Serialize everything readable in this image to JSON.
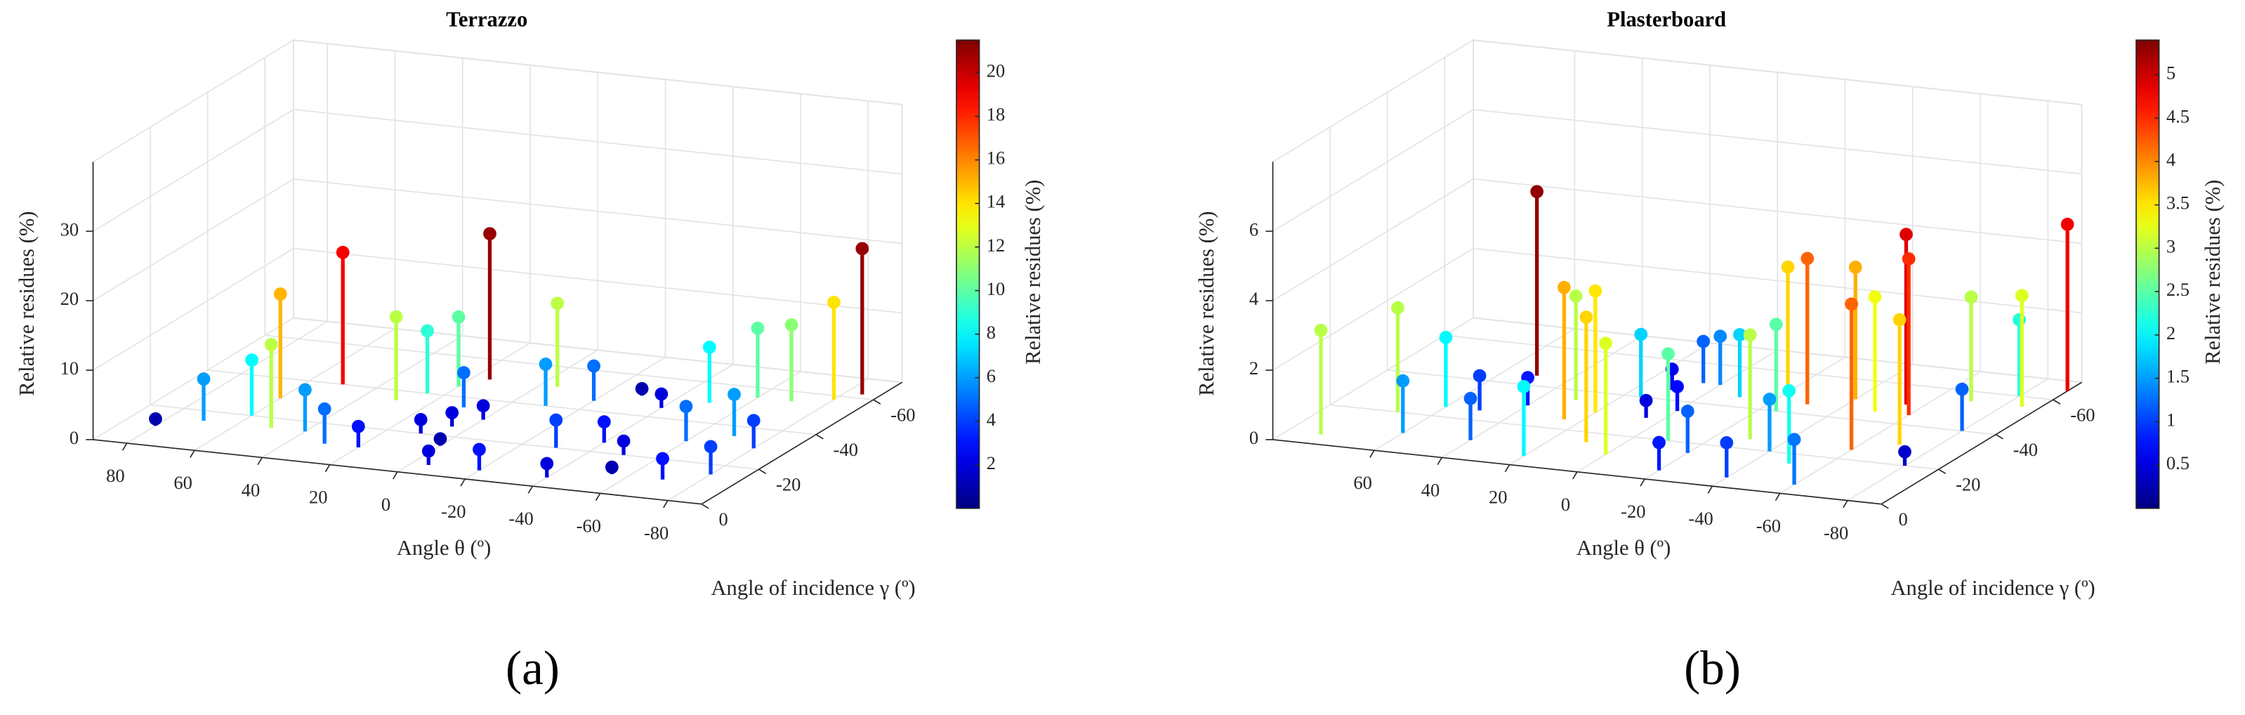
{
  "chart_data": [
    {
      "type": "stem3d",
      "title": "Terrazzo",
      "panel_label": "(a)",
      "xlabel": "Angle θ (º)",
      "ylabel": "Angle of incidence γ (º)",
      "zlabel": "Relative residues (%)",
      "colorbar_label": "Relative residues (%)",
      "colormap": "jet",
      "grid": true,
      "xlim": [
        90,
        -90
      ],
      "xticks": [
        80,
        60,
        40,
        20,
        0,
        -20,
        -40,
        -60,
        -80
      ],
      "ylim": [
        0,
        -70
      ],
      "yticks": [
        0,
        -20,
        -40,
        -60
      ],
      "zlim": [
        0,
        40
      ],
      "zticks": [
        0,
        10,
        20,
        30
      ],
      "clim": [
        0,
        21.5
      ],
      "cticks": [
        2,
        4,
        6,
        8,
        10,
        12,
        14,
        16,
        18,
        20
      ],
      "x": [
        50,
        60,
        15,
        -5,
        20,
        25,
        30,
        10,
        0,
        -10,
        -20,
        -30,
        -40,
        -50,
        -60,
        -70,
        -80,
        -85,
        60,
        70,
        80,
        50,
        40,
        30,
        20,
        10,
        0,
        -5,
        -20,
        -30,
        -40,
        -50,
        -60,
        -70,
        -80,
        -40,
        -55,
        -70,
        -80,
        5
      ],
      "y": [
        -40,
        -30,
        -50,
        -50,
        -45,
        -40,
        -35,
        -35,
        -30,
        -40,
        -45,
        -50,
        -45,
        -50,
        -55,
        -55,
        -58,
        -62,
        -20,
        -15,
        -10,
        -15,
        -15,
        -10,
        -10,
        -20,
        -15,
        -5,
        -5,
        -20,
        -25,
        -20,
        -30,
        -35,
        -30,
        -5,
        -10,
        -10,
        -15,
        -25
      ],
      "values": [
        19,
        15,
        21,
        12,
        10,
        9,
        12,
        5,
        2,
        6,
        5,
        1,
        2,
        8,
        10,
        11,
        14,
        21,
        8,
        6,
        1,
        12,
        6,
        5,
        3,
        2,
        1,
        2,
        3,
        4,
        3,
        2,
        5,
        6,
        4,
        2,
        1,
        3,
        4,
        2
      ]
    },
    {
      "type": "stem3d",
      "title": "Plasterboard",
      "panel_label": "(b)",
      "xlabel": "Angle θ (º)",
      "ylabel": "Angle of incidence γ (º)",
      "zlabel": "Relative residues (%)",
      "colorbar_label": "Relative residues (%)",
      "colormap": "jet",
      "grid": true,
      "xlim": [
        90,
        -90
      ],
      "xticks": [
        60,
        40,
        20,
        0,
        -20,
        -40,
        -60,
        -80
      ],
      "ylim": [
        0,
        -70
      ],
      "yticks": [
        0,
        -20,
        -40,
        -60
      ],
      "zlim": [
        0,
        8
      ],
      "zticks": [
        0,
        2,
        4,
        6
      ],
      "clim": [
        0,
        5.4
      ],
      "cticks": [
        0.5,
        1,
        1.5,
        2,
        2.5,
        3,
        3.5,
        4,
        4.5,
        5
      ],
      "x": [
        50,
        70,
        60,
        50,
        40,
        30,
        25,
        20,
        15,
        10,
        5,
        0,
        -10,
        -20,
        -25,
        -30,
        -40,
        -50,
        -55,
        -60,
        -70,
        -80,
        -90,
        -85,
        10,
        0,
        -10,
        -20,
        -30,
        -40,
        -50,
        -60,
        -70,
        -80,
        -80,
        -60,
        -40,
        -20,
        20,
        40,
        60,
        80,
        5,
        0
      ],
      "y": [
        -45,
        -20,
        -25,
        -25,
        -30,
        -35,
        -25,
        -30,
        -40,
        -45,
        -50,
        -50,
        -45,
        -50,
        -40,
        -45,
        -50,
        -45,
        -50,
        -45,
        -55,
        -60,
        -65,
        -55,
        -15,
        -10,
        -20,
        -15,
        -25,
        -20,
        -15,
        -25,
        -30,
        -40,
        -20,
        -5,
        -5,
        -5,
        -5,
        -10,
        -10,
        -5,
        -30,
        -35
      ],
      "values": [
        5.3,
        3,
        2,
        1,
        0.8,
        3,
        3.8,
        3.5,
        1.8,
        0.6,
        1.2,
        1.4,
        1.8,
        3.6,
        2.5,
        4.2,
        3.8,
        3.3,
        4.9,
        4.5,
        3,
        2.2,
        4.8,
        3.2,
        3.6,
        3.2,
        2.5,
        1.2,
        3,
        1.5,
        2.1,
        4.2,
        3.6,
        1.2,
        0.4,
        1.3,
        1,
        0.8,
        2,
        1.2,
        1.5,
        3,
        0.5,
        0.7
      ]
    }
  ]
}
